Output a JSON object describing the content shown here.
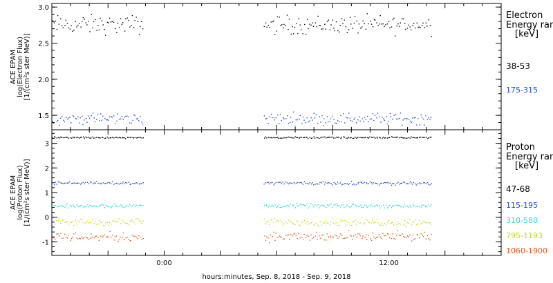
{
  "chart_data": [
    {
      "type": "scatter",
      "title": "",
      "xlabel": "",
      "ylabel_lines": [
        "ACE EPAM",
        "log(Electron Flux)",
        "[1/(cm²s ster MeV)]"
      ],
      "ylim": [
        1.3,
        3.05
      ],
      "yticks": [
        "1.5",
        "2.0",
        "2.5",
        "3.0"
      ],
      "ytick_values": [
        1.5,
        2.0,
        2.5,
        3.0
      ],
      "legend_title": [
        "Electron",
        "Energy ranges",
        "[keV]"
      ],
      "series": [
        {
          "name": "38-53",
          "color": "#000000",
          "mean": 2.76,
          "spread": 0.08
        },
        {
          "name": "175-315",
          "color": "#1b4fd6",
          "mean": 1.46,
          "spread": 0.05
        }
      ]
    },
    {
      "type": "scatter",
      "title": "",
      "xlabel": "",
      "ylabel_lines": [
        "ACE EPAM",
        "log(Proton Flux)",
        "[1/(cm²s ster MeV)]"
      ],
      "ylim": [
        -1.55,
        3.55
      ],
      "yticks": [
        "-1",
        "0",
        "1",
        "2",
        "3"
      ],
      "ytick_values": [
        -1,
        0,
        1,
        2,
        3
      ],
      "legend_title": [
        "Proton",
        "Energy ranges",
        "[keV]"
      ],
      "series": [
        {
          "name": "47-68",
          "color": "#000000",
          "mean": 3.25,
          "spread": 0.02
        },
        {
          "name": "115-195",
          "color": "#1b4fd6",
          "mean": 1.4,
          "spread": 0.04
        },
        {
          "name": "310-580",
          "color": "#22d8d8",
          "mean": 0.48,
          "spread": 0.05
        },
        {
          "name": "795-1193",
          "color": "#c8e000",
          "mean": -0.18,
          "spread": 0.09
        },
        {
          "name": "1060-1900",
          "color": "#ee5511",
          "mean": -0.78,
          "spread": 0.12
        }
      ]
    }
  ],
  "x_axis": {
    "label": "hours:minutes, Sep.  8, 2018 - Sep.  9, 2018",
    "range_hours": [
      -6,
      18
    ],
    "ticks": [
      {
        "hour": 0,
        "label": "0:00"
      },
      {
        "hour": 12,
        "label": "12:00"
      }
    ],
    "data_segments_hours": [
      [
        -6,
        -1.1
      ],
      [
        5.3,
        14.3
      ]
    ]
  }
}
